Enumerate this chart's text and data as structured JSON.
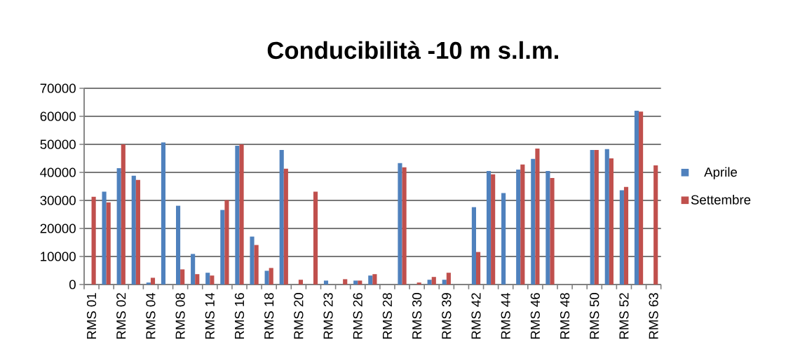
{
  "chart_data": {
    "type": "bar",
    "title": "Conducibilità -10 m s.l.m.",
    "categories": [
      "RMS 01",
      null,
      "RMS 02",
      null,
      "RMS 04",
      null,
      "RMS 08",
      null,
      "RMS 14",
      null,
      "RMS 16",
      null,
      "RMS 18",
      null,
      "RMS 20",
      null,
      "RMS 23",
      null,
      "RMS 26",
      null,
      "RMS 28",
      null,
      "RMS 30",
      null,
      "RMS 39",
      null,
      "RMS 42",
      null,
      "RMS 44",
      null,
      "RMS 46",
      null,
      "RMS 48",
      null,
      "RMS 50",
      null,
      "RMS 52",
      null,
      "RMS 63"
    ],
    "series": [
      {
        "name": "Aprile",
        "color": "#4f81bd",
        "values": [
          null,
          33100,
          41500,
          38800,
          700,
          50700,
          28100,
          10900,
          4200,
          26600,
          49500,
          17100,
          4900,
          48000,
          null,
          null,
          1400,
          null,
          1400,
          3200,
          null,
          43300,
          null,
          1700,
          1700,
          null,
          27600,
          40500,
          32600,
          41000,
          44800,
          40500,
          null,
          null,
          48000,
          48300,
          33600,
          62000,
          null
        ]
      },
      {
        "name": "Settembre",
        "color": "#c0504d",
        "values": [
          31300,
          29300,
          50000,
          37300,
          2400,
          null,
          5400,
          3700,
          3200,
          30100,
          50000,
          14100,
          5900,
          41300,
          1700,
          33100,
          null,
          1900,
          1400,
          3700,
          null,
          41800,
          700,
          2700,
          4200,
          null,
          11600,
          39300,
          null,
          42800,
          48500,
          38000,
          null,
          null,
          48000,
          45000,
          34800,
          61700,
          42500
        ]
      }
    ],
    "ylim": [
      0,
      70000
    ],
    "yticks": [
      0,
      10000,
      20000,
      30000,
      40000,
      50000,
      60000,
      70000
    ],
    "grid": "y",
    "legend": "right"
  }
}
